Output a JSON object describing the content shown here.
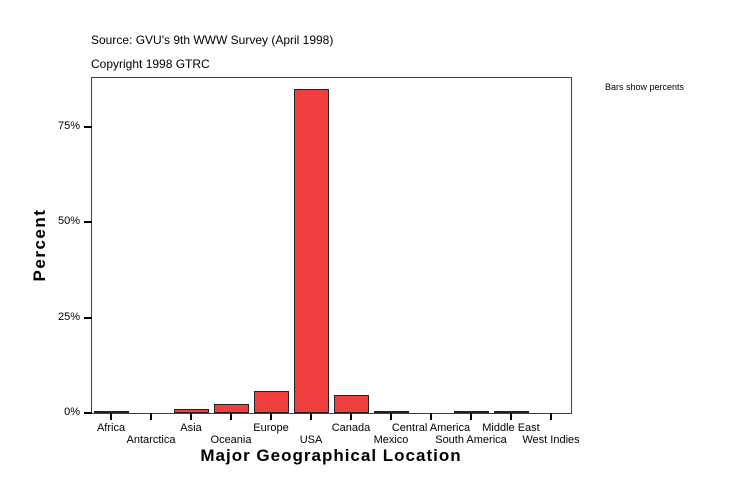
{
  "header": {
    "source": "Source: GVU's 9th WWW Survey (April 1998)",
    "copyright": "Copyright 1998 GTRC",
    "note": "Bars show percents"
  },
  "colors": {
    "bar": "#ef3f3f",
    "frame": "#404040"
  },
  "chart_data": {
    "type": "bar",
    "title": "Source: GVU's 9th WWW Survey (April 1998)",
    "subtitle": "Copyright 1998 GTRC",
    "annotation": "Bars show percents",
    "xlabel": "Major Geographical Location",
    "ylabel": "Percent",
    "ylim": [
      0,
      88
    ],
    "yticks": [
      "0%",
      "25%",
      "50%",
      "75%"
    ],
    "grid": false,
    "legend": null,
    "categories": [
      "Africa",
      "Antarctica",
      "Asia",
      "Oceania",
      "Europe",
      "USA",
      "Canada",
      "Mexico",
      "Central America",
      "South America",
      "Middle East",
      "West Indies"
    ],
    "values": [
      0.2,
      0.0,
      1.1,
      2.4,
      5.8,
      85.0,
      4.7,
      0.2,
      0.0,
      0.2,
      0.2,
      0.0
    ]
  }
}
